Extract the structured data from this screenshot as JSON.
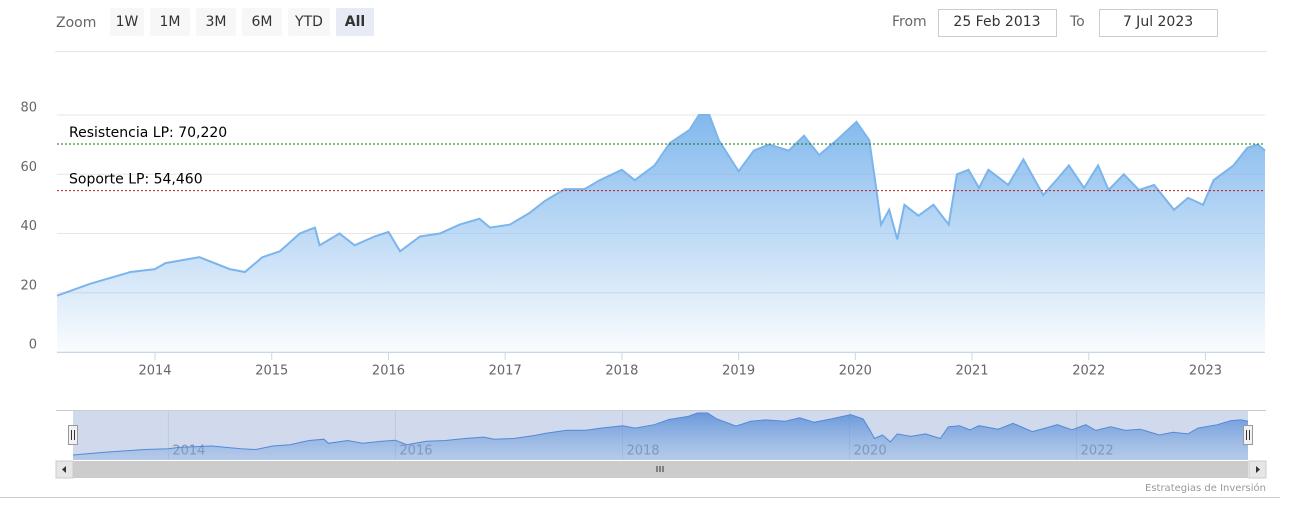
{
  "toolbar": {
    "zoom_label": "Zoom",
    "buttons": [
      "1W",
      "1M",
      "3M",
      "6M",
      "YTD",
      "All"
    ],
    "selected": 5,
    "from_label": "From",
    "from": "25 Feb 2013",
    "to_label": "To",
    "to": "7 Jul 2023"
  },
  "chart_data": {
    "type": "area",
    "color": "#7cb5ec",
    "x": [
      2013.16,
      2013.44,
      2013.79,
      2014.0,
      2014.09,
      2014.38,
      2014.64,
      2014.77,
      2014.92,
      2015.07,
      2015.24,
      2015.37,
      2015.41,
      2015.58,
      2015.71,
      2015.88,
      2016.0,
      2016.1,
      2016.27,
      2016.44,
      2016.61,
      2016.78,
      2016.87,
      2017.04,
      2017.21,
      2017.34,
      2017.51,
      2017.68,
      2017.81,
      2018.0,
      2018.11,
      2018.28,
      2018.41,
      2018.58,
      2018.66,
      2018.75,
      2018.83,
      2019.0,
      2019.13,
      2019.26,
      2019.43,
      2019.56,
      2019.69,
      2019.84,
      2020.01,
      2020.12,
      2020.18,
      2020.22,
      2020.29,
      2020.36,
      2020.42,
      2020.54,
      2020.67,
      2020.8,
      2020.87,
      2020.97,
      2021.06,
      2021.14,
      2021.31,
      2021.44,
      2021.61,
      2021.74,
      2021.83,
      2021.96,
      2022.08,
      2022.17,
      2022.3,
      2022.43,
      2022.56,
      2022.73,
      2022.85,
      2022.98,
      2023.07,
      2023.24,
      2023.36,
      2023.45,
      2023.51
    ],
    "values": [
      19,
      23,
      27,
      28,
      30,
      32,
      28,
      27,
      32,
      34,
      40,
      42,
      36,
      40,
      36,
      39,
      40.5,
      34,
      39,
      40,
      43,
      45,
      42,
      43,
      47,
      51,
      55,
      55,
      58,
      61.5,
      58,
      63,
      70.5,
      75,
      80,
      80,
      71.5,
      61,
      68,
      70,
      68,
      73,
      66.5,
      71.5,
      77.7,
      71.5,
      55,
      43,
      48,
      38,
      49.7,
      46,
      49.7,
      43,
      60,
      61.5,
      55.4,
      61.5,
      56.4,
      65,
      53,
      58.8,
      63,
      55.4,
      63,
      54.7,
      60,
      54.7,
      56.4,
      48,
      52,
      49.7,
      58,
      63,
      69,
      70,
      68
    ],
    "xlim": [
      2013.16,
      2023.51
    ],
    "xticks": [
      2014,
      2015,
      2016,
      2017,
      2018,
      2019,
      2020,
      2021,
      2022,
      2023
    ],
    "ylim": [
      0,
      80
    ],
    "yticks": [
      0,
      20,
      40,
      60,
      80
    ],
    "grid": true,
    "plot_lines": [
      {
        "label": "Resistencia LP: 70,220",
        "value": 70.22,
        "color": "#0a7a0a"
      },
      {
        "label": "Soporte LP: 54,460",
        "value": 54.46,
        "color": "#c01818"
      }
    ],
    "navigator_xticks": [
      2014,
      2016,
      2018,
      2020,
      2022
    ]
  },
  "credits": "Estrategias de Inversión"
}
